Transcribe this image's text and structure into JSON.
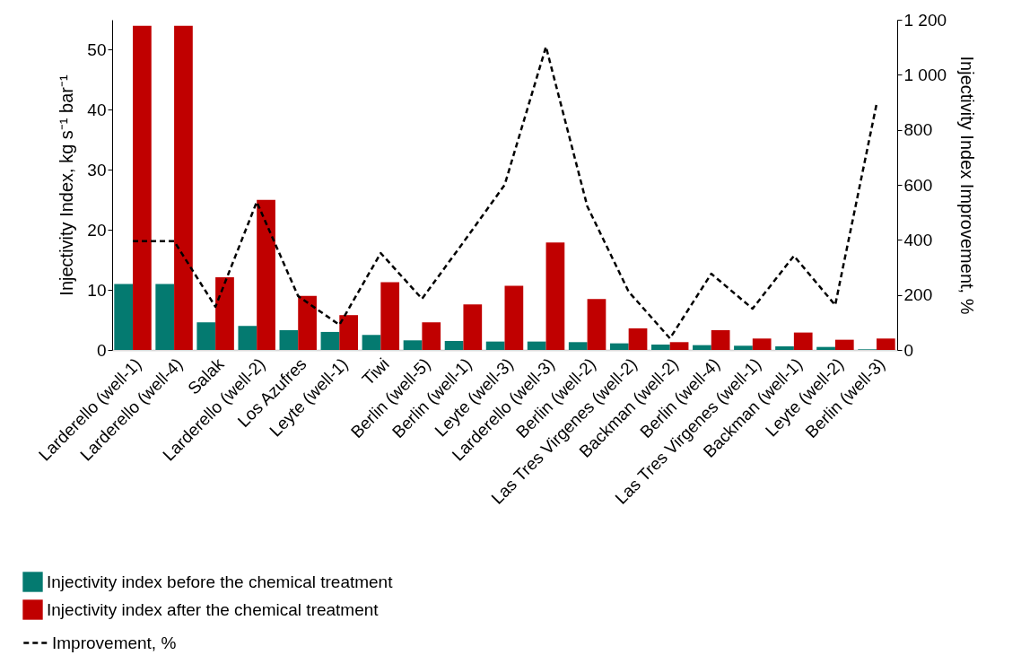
{
  "chart_data": {
    "type": "bar",
    "ylabel": "Injectivity Index, kg s⁻¹ bar⁻¹",
    "y2label": "Injectivity Index Improvement, %",
    "categories": [
      "Larderello (well-1)",
      "Larderello (well-4)",
      "Salak",
      "Larderello (well-2)",
      "Los Azufres",
      "Leyte (well-1)",
      "Tiwi",
      "Berlin (well-5)",
      "Berlin (well-1)",
      "Leyte (well-3)",
      "Larderello (well-3)",
      "Berlin (well-2)",
      "Las Tres Virgenes (well-2)",
      "Backman (well-2)",
      "Berlin (well-4)",
      "Las Tres Virgenes (well-1)",
      "Backman (well-1)",
      "Leyte (well-2)",
      "Berlin (well-3)"
    ],
    "series": [
      {
        "name": "Injectivity index before the chemical treatment",
        "type": "bar",
        "color": "#047a70",
        "values": [
          11,
          11,
          4.6,
          4.0,
          3.3,
          3.0,
          2.5,
          1.6,
          1.5,
          1.4,
          1.4,
          1.3,
          1.1,
          0.9,
          0.8,
          0.7,
          0.6,
          0.5,
          0.1
        ]
      },
      {
        "name": "Injectivity index after the chemical treatment",
        "type": "bar",
        "color": "#c00000",
        "values": [
          54,
          54,
          12.1,
          25,
          9,
          5.8,
          11.3,
          4.6,
          7.6,
          10.7,
          17.9,
          8.5,
          3.6,
          1.3,
          3.3,
          1.9,
          2.9,
          1.7,
          1.9
        ]
      },
      {
        "name": "Improvement, %",
        "type": "line",
        "axis": "y2",
        "line_style": "dashed",
        "color": "#000000",
        "values": [
          395,
          395,
          157,
          538,
          196,
          91,
          352,
          186,
          391,
          600,
          1102,
          522,
          212,
          42,
          277,
          150,
          342,
          163,
          893
        ]
      }
    ],
    "ylim": [
      0,
      55
    ],
    "yticks": [
      0,
      10,
      20,
      30,
      40,
      50
    ],
    "y2lim": [
      0,
      1200
    ],
    "y2ticks": [
      0,
      200,
      400,
      600,
      800,
      {
        "value": 1000,
        "label": "1 000"
      },
      {
        "value": 1200,
        "label": "1 200"
      }
    ],
    "legend": "bottom"
  }
}
